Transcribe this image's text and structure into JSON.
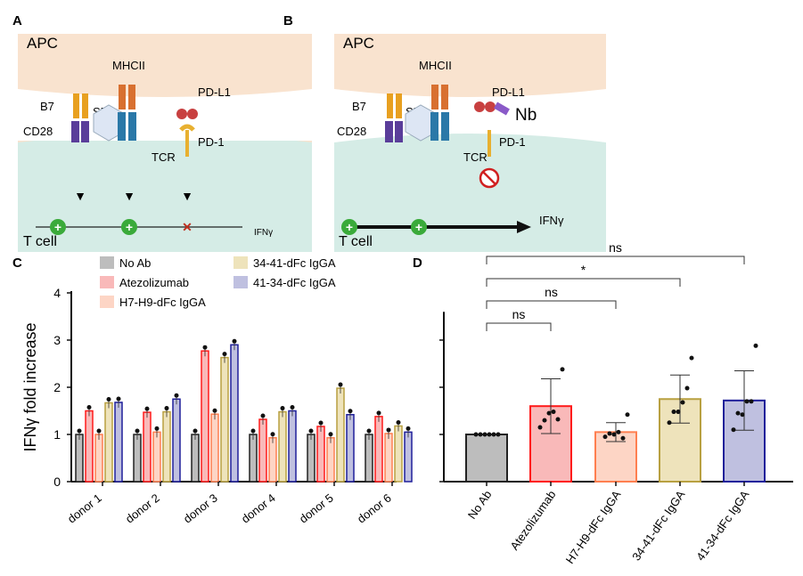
{
  "panels": {
    "A": {
      "letter": "A",
      "apc": "APC",
      "mhcii": "MHCII",
      "b7": "B7",
      "cd28": "CD28",
      "seb": "SEB",
      "tcr": "TCR",
      "pdl1": "PD-L1",
      "pd1": "PD-1",
      "tcell": "T cell",
      "ifng": "IFNγ"
    },
    "B": {
      "letter": "B",
      "apc": "APC",
      "mhcii": "MHCII",
      "b7": "B7",
      "cd28": "CD28",
      "seb": "SEB",
      "tcr": "TCR",
      "pdl1": "PD-L1",
      "nb": "Nb",
      "pd1": "PD-1",
      "tcell": "T cell",
      "ifng": "IFNγ"
    },
    "C": {
      "letter": "C"
    },
    "D": {
      "letter": "D"
    }
  },
  "colors": {
    "apc": "#f9e3cf",
    "tcell": "#d5ece6",
    "series_fill": [
      "#bdbdbd",
      "#f9b9b9",
      "#fdd5c5",
      "#eee3bb",
      "#bfc0e0"
    ],
    "series_stroke": [
      "#222222",
      "#ff1a1a",
      "#ff7f50",
      "#b8a040",
      "#1f1f9a"
    ]
  },
  "chart_data": [
    {
      "type": "bar",
      "panel": "C",
      "ylabel": "IFNγ fold increase",
      "ylim": [
        0,
        4
      ],
      "yticks": [
        "0",
        "1",
        "2",
        "3",
        "4"
      ],
      "categories": [
        "donor 1",
        "donor 2",
        "donor 3",
        "donor 4",
        "donor 5",
        "donor 6"
      ],
      "legend_position": "top",
      "series": [
        {
          "name": "No Ab",
          "values": [
            1.0,
            1.0,
            1.0,
            1.0,
            1.0,
            1.0
          ]
        },
        {
          "name": "Atezolizumab",
          "values": [
            1.5,
            1.47,
            2.77,
            1.32,
            1.17,
            1.38
          ]
        },
        {
          "name": "H7-H9-dFc IgGA",
          "values": [
            1.0,
            1.05,
            1.43,
            0.93,
            0.93,
            1.02
          ]
        },
        {
          "name": "34-41-dFc IgGA",
          "values": [
            1.67,
            1.48,
            2.63,
            1.48,
            1.98,
            1.18
          ]
        },
        {
          "name": "41-34-dFc IgGA",
          "values": [
            1.68,
            1.75,
            2.9,
            1.5,
            1.42,
            1.05
          ]
        }
      ]
    },
    {
      "type": "bar",
      "panel": "D",
      "ylim": [
        0,
        4
      ],
      "categories": [
        "No Ab",
        "Atezolizumab",
        "H7-H9-dFc IgGA",
        "34-41-dFc IgGA",
        "41-34-dFc IgGA"
      ],
      "values": [
        1.0,
        1.6,
        1.05,
        1.75,
        1.72
      ],
      "error": [
        0.0,
        0.58,
        0.2,
        0.51,
        0.63
      ],
      "points": [
        [
          1,
          1,
          1,
          1,
          1,
          1
        ],
        [
          1.15,
          1.3,
          1.45,
          1.48,
          1.32,
          2.38
        ],
        [
          0.95,
          1.02,
          1.0,
          1.05,
          0.92,
          1.42
        ],
        [
          1.25,
          1.48,
          1.48,
          1.68,
          1.98,
          2.62
        ],
        [
          1.1,
          1.45,
          1.42,
          1.7,
          1.7,
          2.88
        ]
      ],
      "comparisons": [
        {
          "from": "No Ab",
          "to": "Atezolizumab",
          "label": "ns"
        },
        {
          "from": "No Ab",
          "to": "H7-H9-dFc IgGA",
          "label": "ns"
        },
        {
          "from": "No Ab",
          "to": "34-41-dFc IgGA",
          "label": "*"
        },
        {
          "from": "No Ab",
          "to": "41-34-dFc IgGA",
          "label": "ns"
        }
      ]
    }
  ]
}
